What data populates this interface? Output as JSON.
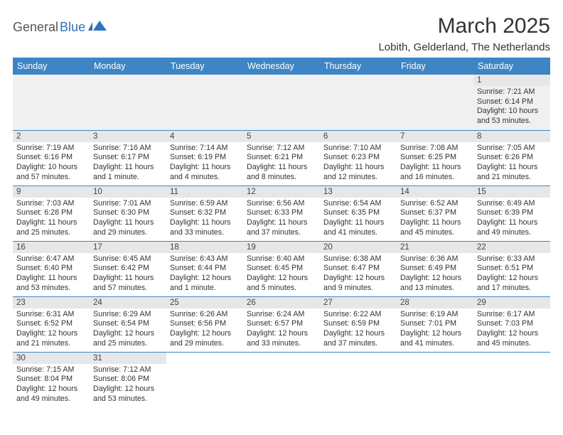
{
  "logo": {
    "text1": "General",
    "text2": "Blue"
  },
  "title": "March 2025",
  "location": "Lobith, Gelderland, The Netherlands",
  "colors": {
    "header_bg": "#3e85c6",
    "header_fg": "#ffffff",
    "row_border": "#3e85c6",
    "daynum_bg": "#e7e7e7",
    "firstrow_bg": "#f0f0f0"
  },
  "weekdays": [
    "Sunday",
    "Monday",
    "Tuesday",
    "Wednesday",
    "Thursday",
    "Friday",
    "Saturday"
  ],
  "weeks": [
    [
      {
        "n": "",
        "sr": "",
        "ss": "",
        "dl": ""
      },
      {
        "n": "",
        "sr": "",
        "ss": "",
        "dl": ""
      },
      {
        "n": "",
        "sr": "",
        "ss": "",
        "dl": ""
      },
      {
        "n": "",
        "sr": "",
        "ss": "",
        "dl": ""
      },
      {
        "n": "",
        "sr": "",
        "ss": "",
        "dl": ""
      },
      {
        "n": "",
        "sr": "",
        "ss": "",
        "dl": ""
      },
      {
        "n": "1",
        "sr": "Sunrise: 7:21 AM",
        "ss": "Sunset: 6:14 PM",
        "dl": "Daylight: 10 hours and 53 minutes."
      }
    ],
    [
      {
        "n": "2",
        "sr": "Sunrise: 7:19 AM",
        "ss": "Sunset: 6:16 PM",
        "dl": "Daylight: 10 hours and 57 minutes."
      },
      {
        "n": "3",
        "sr": "Sunrise: 7:16 AM",
        "ss": "Sunset: 6:17 PM",
        "dl": "Daylight: 11 hours and 1 minute."
      },
      {
        "n": "4",
        "sr": "Sunrise: 7:14 AM",
        "ss": "Sunset: 6:19 PM",
        "dl": "Daylight: 11 hours and 4 minutes."
      },
      {
        "n": "5",
        "sr": "Sunrise: 7:12 AM",
        "ss": "Sunset: 6:21 PM",
        "dl": "Daylight: 11 hours and 8 minutes."
      },
      {
        "n": "6",
        "sr": "Sunrise: 7:10 AM",
        "ss": "Sunset: 6:23 PM",
        "dl": "Daylight: 11 hours and 12 minutes."
      },
      {
        "n": "7",
        "sr": "Sunrise: 7:08 AM",
        "ss": "Sunset: 6:25 PM",
        "dl": "Daylight: 11 hours and 16 minutes."
      },
      {
        "n": "8",
        "sr": "Sunrise: 7:05 AM",
        "ss": "Sunset: 6:26 PM",
        "dl": "Daylight: 11 hours and 21 minutes."
      }
    ],
    [
      {
        "n": "9",
        "sr": "Sunrise: 7:03 AM",
        "ss": "Sunset: 6:28 PM",
        "dl": "Daylight: 11 hours and 25 minutes."
      },
      {
        "n": "10",
        "sr": "Sunrise: 7:01 AM",
        "ss": "Sunset: 6:30 PM",
        "dl": "Daylight: 11 hours and 29 minutes."
      },
      {
        "n": "11",
        "sr": "Sunrise: 6:59 AM",
        "ss": "Sunset: 6:32 PM",
        "dl": "Daylight: 11 hours and 33 minutes."
      },
      {
        "n": "12",
        "sr": "Sunrise: 6:56 AM",
        "ss": "Sunset: 6:33 PM",
        "dl": "Daylight: 11 hours and 37 minutes."
      },
      {
        "n": "13",
        "sr": "Sunrise: 6:54 AM",
        "ss": "Sunset: 6:35 PM",
        "dl": "Daylight: 11 hours and 41 minutes."
      },
      {
        "n": "14",
        "sr": "Sunrise: 6:52 AM",
        "ss": "Sunset: 6:37 PM",
        "dl": "Daylight: 11 hours and 45 minutes."
      },
      {
        "n": "15",
        "sr": "Sunrise: 6:49 AM",
        "ss": "Sunset: 6:39 PM",
        "dl": "Daylight: 11 hours and 49 minutes."
      }
    ],
    [
      {
        "n": "16",
        "sr": "Sunrise: 6:47 AM",
        "ss": "Sunset: 6:40 PM",
        "dl": "Daylight: 11 hours and 53 minutes."
      },
      {
        "n": "17",
        "sr": "Sunrise: 6:45 AM",
        "ss": "Sunset: 6:42 PM",
        "dl": "Daylight: 11 hours and 57 minutes."
      },
      {
        "n": "18",
        "sr": "Sunrise: 6:43 AM",
        "ss": "Sunset: 6:44 PM",
        "dl": "Daylight: 12 hours and 1 minute."
      },
      {
        "n": "19",
        "sr": "Sunrise: 6:40 AM",
        "ss": "Sunset: 6:45 PM",
        "dl": "Daylight: 12 hours and 5 minutes."
      },
      {
        "n": "20",
        "sr": "Sunrise: 6:38 AM",
        "ss": "Sunset: 6:47 PM",
        "dl": "Daylight: 12 hours and 9 minutes."
      },
      {
        "n": "21",
        "sr": "Sunrise: 6:36 AM",
        "ss": "Sunset: 6:49 PM",
        "dl": "Daylight: 12 hours and 13 minutes."
      },
      {
        "n": "22",
        "sr": "Sunrise: 6:33 AM",
        "ss": "Sunset: 6:51 PM",
        "dl": "Daylight: 12 hours and 17 minutes."
      }
    ],
    [
      {
        "n": "23",
        "sr": "Sunrise: 6:31 AM",
        "ss": "Sunset: 6:52 PM",
        "dl": "Daylight: 12 hours and 21 minutes."
      },
      {
        "n": "24",
        "sr": "Sunrise: 6:29 AM",
        "ss": "Sunset: 6:54 PM",
        "dl": "Daylight: 12 hours and 25 minutes."
      },
      {
        "n": "25",
        "sr": "Sunrise: 6:26 AM",
        "ss": "Sunset: 6:56 PM",
        "dl": "Daylight: 12 hours and 29 minutes."
      },
      {
        "n": "26",
        "sr": "Sunrise: 6:24 AM",
        "ss": "Sunset: 6:57 PM",
        "dl": "Daylight: 12 hours and 33 minutes."
      },
      {
        "n": "27",
        "sr": "Sunrise: 6:22 AM",
        "ss": "Sunset: 6:59 PM",
        "dl": "Daylight: 12 hours and 37 minutes."
      },
      {
        "n": "28",
        "sr": "Sunrise: 6:19 AM",
        "ss": "Sunset: 7:01 PM",
        "dl": "Daylight: 12 hours and 41 minutes."
      },
      {
        "n": "29",
        "sr": "Sunrise: 6:17 AM",
        "ss": "Sunset: 7:03 PM",
        "dl": "Daylight: 12 hours and 45 minutes."
      }
    ],
    [
      {
        "n": "30",
        "sr": "Sunrise: 7:15 AM",
        "ss": "Sunset: 8:04 PM",
        "dl": "Daylight: 12 hours and 49 minutes."
      },
      {
        "n": "31",
        "sr": "Sunrise: 7:12 AM",
        "ss": "Sunset: 8:06 PM",
        "dl": "Daylight: 12 hours and 53 minutes."
      },
      {
        "n": "",
        "sr": "",
        "ss": "",
        "dl": ""
      },
      {
        "n": "",
        "sr": "",
        "ss": "",
        "dl": ""
      },
      {
        "n": "",
        "sr": "",
        "ss": "",
        "dl": ""
      },
      {
        "n": "",
        "sr": "",
        "ss": "",
        "dl": ""
      },
      {
        "n": "",
        "sr": "",
        "ss": "",
        "dl": ""
      }
    ]
  ]
}
